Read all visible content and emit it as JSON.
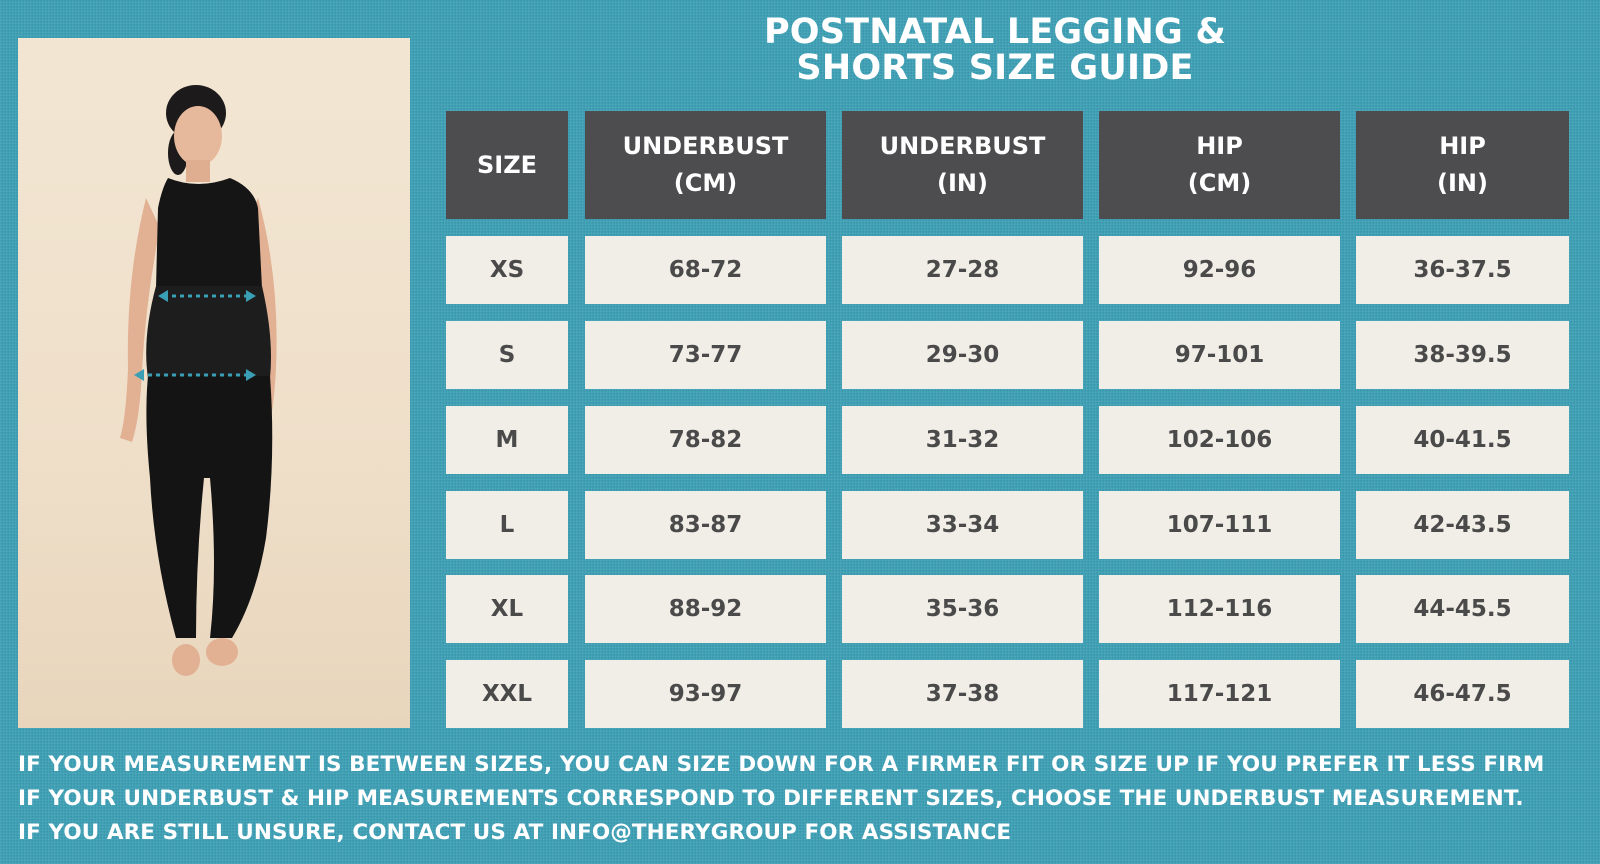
{
  "title": {
    "line1": "POSTNATAL LEGGING &",
    "line2": "SHORTS SIZE GUIDE"
  },
  "table": {
    "columns": [
      {
        "line1": "SIZE",
        "line2": ""
      },
      {
        "line1": "UNDERBUST",
        "line2": "(CM)"
      },
      {
        "line1": "UNDERBUST",
        "line2": "(IN)"
      },
      {
        "line1": "HIP",
        "line2": "(CM)"
      },
      {
        "line1": "HIP",
        "line2": "(IN)"
      }
    ],
    "rows": [
      [
        "XS",
        "68-72",
        "27-28",
        "92-96",
        "36-37.5"
      ],
      [
        "S",
        "73-77",
        "29-30",
        "97-101",
        "38-39.5"
      ],
      [
        "M",
        "78-82",
        "31-32",
        "102-106",
        "40-41.5"
      ],
      [
        "L",
        "83-87",
        "33-34",
        "107-111",
        "42-43.5"
      ],
      [
        "XL",
        "88-92",
        "35-36",
        "112-116",
        "44-45.5"
      ],
      [
        "XXL",
        "93-97",
        "37-38",
        "117-121",
        "46-47.5"
      ]
    ]
  },
  "notes": [
    "IF YOUR MEASUREMENT IS BETWEEN SIZES, YOU CAN SIZE DOWN FOR A FIRMER FIT OR  SIZE UP IF YOU PREFER IT LESS  FIRM",
    "IF YOUR UNDERBUST & HIP MEASUREMENTS CORRESPOND  TO DIFFERENT SIZES, CHOOSE THE UNDERBUST MEASUREMENT.",
    "IF YOU ARE STILL UNSURE, CONTACT US AT INFO@THERYGROUP FOR ASSISTANCE"
  ],
  "colors": {
    "background": "#3a9fb5",
    "header_cell": "#4d4d4f",
    "body_cell": "#f1ede7",
    "measure_arrow": "#3a9fb5"
  },
  "photo": {
    "subject": "model-wearing-black-crop-top-and-leggings",
    "markers": [
      "underbust-measure-arrow",
      "hip-measure-arrow"
    ]
  }
}
